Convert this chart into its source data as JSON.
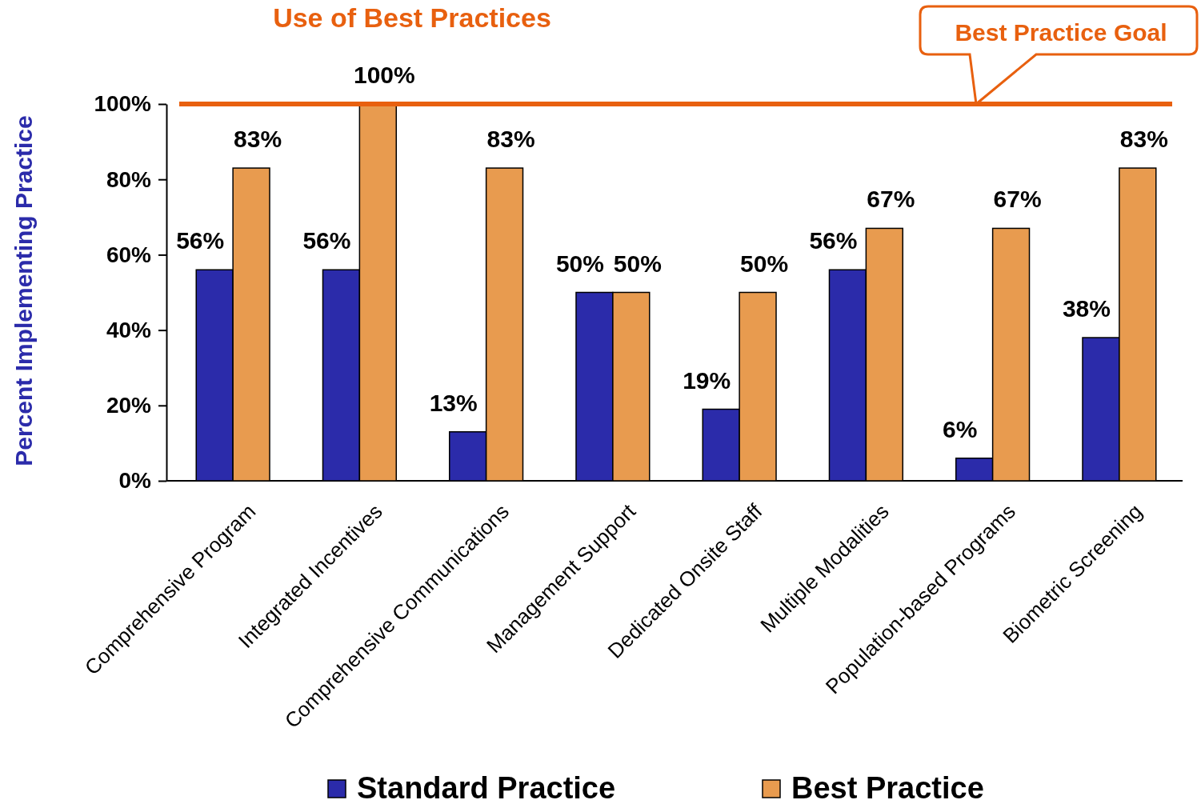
{
  "chart_data": {
    "type": "bar",
    "title": "Use of Best Practices",
    "ylabel": "Percent Implementing Practice",
    "categories": [
      "Comprehensive Program",
      "Integrated Incentives",
      "Comprehensive Communications",
      "Management Support",
      "Dedicated Onsite Staff",
      "Multiple Modalities",
      "Population-based Programs",
      "Biometric Screening"
    ],
    "series": [
      {
        "name": "Standard Practice",
        "color": "#2b2baa",
        "values": [
          56,
          56,
          13,
          50,
          19,
          56,
          6,
          38
        ],
        "value_labels": [
          "56%",
          "56%",
          "13%",
          "50%",
          "19%",
          "56%",
          "6%",
          "38%"
        ]
      },
      {
        "name": "Best Practice",
        "color": "#e89b4f",
        "values": [
          83,
          100,
          83,
          50,
          50,
          67,
          67,
          83
        ],
        "value_labels": [
          "83%",
          "100%",
          "83%",
          "50%",
          "50%",
          "67%",
          "67%",
          "83%"
        ]
      }
    ],
    "ylim": [
      0,
      100
    ],
    "yticks": [
      {
        "value": 0,
        "label": "0%"
      },
      {
        "value": 20,
        "label": "20%"
      },
      {
        "value": 40,
        "label": "40%"
      },
      {
        "value": 60,
        "label": "60%"
      },
      {
        "value": 80,
        "label": "80%"
      },
      {
        "value": 100,
        "label": "100%"
      }
    ],
    "ref_lines": [
      {
        "axis": "y",
        "value": 100,
        "label": "Best Practice Goal",
        "color": "#e8600f"
      }
    ],
    "grid": false,
    "legend": "bottom"
  }
}
